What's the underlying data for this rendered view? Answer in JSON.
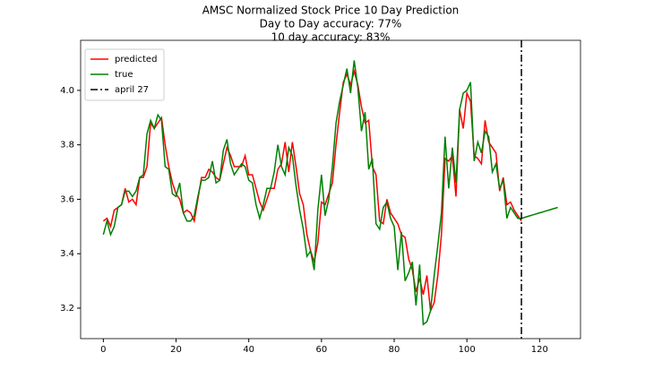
{
  "chart_data": {
    "type": "line",
    "title": "AMSC Normalized Stock Price 10 Day Prediction",
    "subtitle": [
      "Day to Day accuracy: 77%",
      "10 day accuracy: 83%"
    ],
    "x": [
      0,
      1,
      2,
      3,
      4,
      5,
      6,
      7,
      8,
      9,
      10,
      11,
      12,
      13,
      14,
      15,
      16,
      17,
      18,
      19,
      20,
      21,
      22,
      23,
      24,
      25,
      26,
      27,
      28,
      29,
      30,
      31,
      32,
      33,
      34,
      35,
      36,
      37,
      38,
      39,
      40,
      41,
      42,
      43,
      44,
      45,
      46,
      47,
      48,
      49,
      50,
      51,
      52,
      53,
      54,
      55,
      56,
      57,
      58,
      59,
      60,
      61,
      62,
      63,
      64,
      65,
      66,
      67,
      68,
      69,
      70,
      71,
      72,
      73,
      74,
      75,
      76,
      77,
      78,
      79,
      80,
      81,
      82,
      83,
      84,
      85,
      86,
      87,
      88,
      89,
      90,
      91,
      92,
      93,
      94,
      95,
      96,
      97,
      98,
      99,
      100,
      101,
      102,
      103,
      104,
      105,
      106,
      107,
      108,
      109,
      110,
      111,
      112,
      113,
      114,
      115,
      116,
      117,
      118,
      119,
      120,
      121,
      122,
      123,
      124,
      125
    ],
    "series": [
      {
        "name": "predicted",
        "color": "#ff0000",
        "values": [
          3.52,
          3.53,
          3.5,
          3.56,
          3.57,
          3.58,
          3.64,
          3.59,
          3.6,
          3.58,
          3.68,
          3.68,
          3.72,
          3.88,
          3.86,
          3.88,
          3.9,
          3.8,
          3.72,
          3.66,
          3.62,
          3.6,
          3.55,
          3.56,
          3.55,
          3.52,
          3.6,
          3.68,
          3.68,
          3.71,
          3.7,
          3.68,
          3.67,
          3.73,
          3.79,
          3.76,
          3.72,
          3.72,
          3.72,
          3.76,
          3.69,
          3.69,
          3.64,
          3.59,
          3.56,
          3.6,
          3.64,
          3.64,
          3.71,
          3.73,
          3.81,
          3.7,
          3.81,
          3.72,
          3.62,
          3.58,
          3.47,
          3.41,
          3.37,
          3.44,
          3.59,
          3.58,
          3.62,
          3.66,
          3.8,
          3.92,
          4.03,
          4.06,
          4.02,
          4.07,
          4.02,
          3.94,
          3.88,
          3.89,
          3.72,
          3.69,
          3.52,
          3.51,
          3.6,
          3.55,
          3.53,
          3.51,
          3.47,
          3.46,
          3.38,
          3.34,
          3.26,
          3.31,
          3.25,
          3.32,
          3.19,
          3.22,
          3.32,
          3.47,
          3.75,
          3.74,
          3.76,
          3.61,
          3.93,
          3.86,
          3.99,
          3.96,
          3.76,
          3.75,
          3.73,
          3.89,
          3.81,
          3.79,
          3.77,
          3.63,
          3.68,
          3.58,
          3.59,
          3.56,
          3.54,
          3.52,
          null,
          null,
          null,
          null,
          null,
          null,
          null,
          null,
          null,
          null
        ]
      },
      {
        "name": "true",
        "color": "#008000",
        "values": [
          3.47,
          3.52,
          3.47,
          3.5,
          3.57,
          3.58,
          3.63,
          3.63,
          3.61,
          3.63,
          3.68,
          3.69,
          3.84,
          3.89,
          3.86,
          3.91,
          3.89,
          3.72,
          3.71,
          3.62,
          3.61,
          3.66,
          3.55,
          3.52,
          3.52,
          3.54,
          3.61,
          3.67,
          3.67,
          3.68,
          3.74,
          3.66,
          3.67,
          3.78,
          3.82,
          3.73,
          3.69,
          3.71,
          3.73,
          3.72,
          3.67,
          3.66,
          3.58,
          3.53,
          3.58,
          3.64,
          3.64,
          3.7,
          3.8,
          3.72,
          3.69,
          3.79,
          3.76,
          3.65,
          3.56,
          3.49,
          3.39,
          3.41,
          3.34,
          3.56,
          3.69,
          3.54,
          3.6,
          3.72,
          3.88,
          3.96,
          4.02,
          4.08,
          3.99,
          4.11,
          4.01,
          3.85,
          3.92,
          3.71,
          3.75,
          3.51,
          3.49,
          3.57,
          3.59,
          3.53,
          3.5,
          3.34,
          3.48,
          3.3,
          3.33,
          3.37,
          3.21,
          3.36,
          3.14,
          3.15,
          3.19,
          3.32,
          3.43,
          3.55,
          3.83,
          3.64,
          3.79,
          3.66,
          3.93,
          3.99,
          4.0,
          4.03,
          3.74,
          3.81,
          3.77,
          3.85,
          3.83,
          3.7,
          3.73,
          3.64,
          3.67,
          3.53,
          3.57,
          3.55,
          3.53,
          3.53,
          3.534,
          3.538,
          3.542,
          3.546,
          3.55,
          3.554,
          3.558,
          3.562,
          3.566,
          3.57
        ]
      }
    ],
    "vlines": [
      {
        "x": 115,
        "label": "april 27",
        "color": "#000000"
      }
    ],
    "xlim": [
      -6.25,
      131.25
    ],
    "xticks": [
      0,
      20,
      40,
      60,
      80,
      100,
      120
    ],
    "ylim": [
      3.088,
      4.184
    ],
    "yticks": [
      3.2,
      3.4,
      3.6,
      3.8,
      {
        "value": 4,
        "label": "4.0"
      }
    ],
    "legend": "upper left",
    "grid": false
  }
}
